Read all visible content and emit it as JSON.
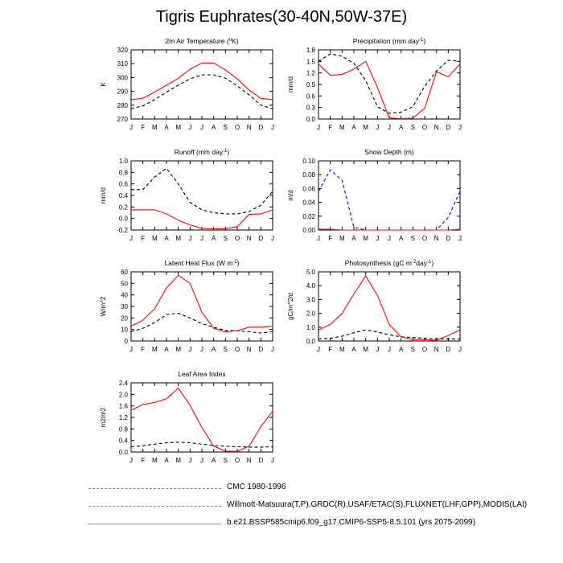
{
  "title": "Tigris Euphrates(30-40N,50W-37E)",
  "months": [
    "J",
    "F",
    "M",
    "A",
    "M",
    "J",
    "J",
    "A",
    "S",
    "O",
    "N",
    "D",
    "J"
  ],
  "colors": {
    "model": "#ff0000",
    "cmc": "#000000",
    "obs": "#0000ff"
  },
  "legend": [
    {
      "label": "CMC 1980-1996",
      "color": "#808080",
      "style": "dashed"
    },
    {
      "label": "Willmott-Matsuura(T,P),GRDC(R),USAF/ETAC(S),FLUXNET(LHF,GPP),MODIS(LAI)",
      "color": "#8080ff",
      "style": "dashed"
    },
    {
      "label": "b.e21.BSSP585cmip6.f09_g17.CMIP6-SSP5-8.5.101 (yrs 2075-2099)",
      "color": "#ff6060",
      "style": "solid"
    }
  ],
  "chart_data": [
    {
      "type": "line",
      "title": "2m Air Temperature (°K)",
      "ylabel": "K",
      "ylim": [
        270,
        320
      ],
      "yticks": [
        "270",
        "280",
        "290",
        "300",
        "310",
        "320"
      ],
      "series": [
        {
          "name": "CMC 1980-1996",
          "style": "dashed",
          "color": "#000000",
          "values": [
            277.5,
            279.5,
            284,
            289.5,
            294.5,
            299,
            302,
            302,
            299.5,
            294,
            287.5,
            280,
            277.5
          ]
        },
        {
          "name": "b.e21.BSSP585cmip6.f09_g17.CMIP6-SSP5-8.5.101 (yrs 2075-2099)",
          "style": "solid",
          "color": "#ff0000",
          "values": [
            284,
            285,
            289.5,
            294.5,
            299.5,
            306,
            310.5,
            310.5,
            305.5,
            299,
            291,
            285,
            284
          ]
        }
      ]
    },
    {
      "type": "line",
      "title": "Precipitation (mm day-1)",
      "ylabel": "mm/d",
      "ylim": [
        0.0,
        1.8
      ],
      "yticks": [
        "0.0",
        "0.3",
        "0.6",
        "0.9",
        "1.2",
        "1.5",
        "1.8"
      ],
      "series": [
        {
          "name": "CMC 1980-1996",
          "style": "dashed",
          "color": "#000000",
          "values": [
            1.5,
            1.7,
            1.63,
            1.45,
            1.0,
            0.32,
            0.15,
            0.18,
            0.32,
            0.85,
            1.25,
            1.53,
            1.5
          ]
        },
        {
          "name": "b.e21.BSSP585cmip6.f09_g17.CMIP6-SSP5-8.5.101 (yrs 2075-2099)",
          "style": "solid",
          "color": "#ff0000",
          "values": [
            1.43,
            1.14,
            1.16,
            1.3,
            1.5,
            0.82,
            0.03,
            0.01,
            0.02,
            0.28,
            1.23,
            1.1,
            1.43
          ]
        }
      ]
    },
    {
      "type": "line",
      "title": "Runoff (mm day-1)",
      "ylabel": "mm/d",
      "ylim": [
        -0.2,
        1.0
      ],
      "yticks": [
        "-0.2",
        "0.0",
        "0.2",
        "0.4",
        "0.6",
        "0.8",
        "1.0"
      ],
      "series": [
        {
          "name": "CMC 1980-1996",
          "style": "dashed",
          "color": "#000000",
          "values": [
            0.5,
            0.5,
            0.72,
            0.87,
            0.6,
            0.28,
            0.15,
            0.1,
            0.08,
            0.08,
            0.12,
            0.23,
            0.47
          ]
        },
        {
          "name": "b.e21.BSSP585cmip6.f09_g17.CMIP6-SSP5-8.5.101 (yrs 2075-2099)",
          "style": "solid",
          "color": "#ff0000",
          "values": [
            0.15,
            0.15,
            0.15,
            0.08,
            -0.03,
            -0.11,
            -0.17,
            -0.18,
            -0.18,
            -0.14,
            0.07,
            0.08,
            0.15
          ]
        }
      ]
    },
    {
      "type": "line",
      "title": "Snow Depth (m)",
      "ylabel": "m/d",
      "ylim": [
        0.0,
        0.1
      ],
      "yticks": [
        "0.00",
        "0.02",
        "0.04",
        "0.06",
        "0.08",
        "0.10"
      ],
      "series": [
        {
          "name": "Willmott-Matsuura(T,P),GRDC(R),USAF/ETAC(S),FLUXNET(LHF,GPP),MODIS(LAI)",
          "style": "dashed",
          "color": "#0000ff",
          "values": [
            0.056,
            0.087,
            0.072,
            0.004,
            0.0,
            0.0,
            0.0,
            0.0,
            0.0,
            0.0,
            0.0,
            0.018,
            0.056
          ]
        },
        {
          "name": "b.e21.BSSP585cmip6.f09_g17.CMIP6-SSP5-8.5.101 (yrs 2075-2099)",
          "style": "solid",
          "color": "#ff0000",
          "values": [
            0.001,
            0.001,
            0.0,
            0.0,
            0.0,
            0.0,
            0.0,
            0.0,
            0.0,
            0.0,
            0.0,
            0.0,
            0.001
          ]
        }
      ]
    },
    {
      "type": "line",
      "title": "Latent Heat Flux (W m-2)",
      "ylabel": "W/m^2",
      "ylim": [
        0,
        60
      ],
      "yticks": [
        "0",
        "10",
        "20",
        "30",
        "40",
        "50",
        "60"
      ],
      "series": [
        {
          "name": "CMC 1980-1996",
          "style": "dashed",
          "color": "#000000",
          "values": [
            8,
            11,
            16,
            23,
            24,
            20,
            15,
            12,
            9,
            9,
            8,
            7,
            8
          ]
        },
        {
          "name": "b.e21.BSSP585cmip6.f09_g17.CMIP6-SSP5-8.5.101 (yrs 2075-2099)",
          "style": "solid",
          "color": "#ff0000",
          "values": [
            13,
            18,
            28,
            46,
            57,
            50,
            25,
            11,
            8,
            9,
            12,
            12,
            13
          ]
        }
      ]
    },
    {
      "type": "line",
      "title": "Photosynthesis (gC m-2day-1)",
      "ylabel": "gC/m^2/d",
      "ylim": [
        0.0,
        5.0
      ],
      "yticks": [
        "0.0",
        "1.0",
        "2.0",
        "3.0",
        "4.0",
        "5.0"
      ],
      "series": [
        {
          "name": "CMC 1980-1996",
          "style": "dashed",
          "color": "#000000",
          "values": [
            0.15,
            0.2,
            0.35,
            0.6,
            0.8,
            0.65,
            0.45,
            0.3,
            0.25,
            0.2,
            0.15,
            0.15,
            0.15
          ]
        },
        {
          "name": "b.e21.BSSP585cmip6.f09_g17.CMIP6-SSP5-8.5.101 (yrs 2075-2099)",
          "style": "solid",
          "color": "#ff0000",
          "values": [
            0.8,
            1.2,
            2.0,
            3.4,
            4.7,
            3.3,
            1.2,
            0.3,
            0.1,
            0.1,
            0.05,
            0.4,
            0.8
          ]
        }
      ]
    },
    {
      "type": "line",
      "title": "Leaf Area Index",
      "ylabel": "m2/m2",
      "ylim": [
        0.0,
        2.4
      ],
      "yticks": [
        "0.0",
        "0.4",
        "0.8",
        "1.2",
        "1.6",
        "2.0",
        "2.4"
      ],
      "series": [
        {
          "name": "CMC 1980-1996",
          "style": "dashed",
          "color": "#000000",
          "values": [
            0.18,
            0.22,
            0.27,
            0.32,
            0.34,
            0.32,
            0.27,
            0.23,
            0.2,
            0.18,
            0.17,
            0.17,
            0.18
          ]
        },
        {
          "name": "b.e21.BSSP585cmip6.f09_g17.CMIP6-SSP5-8.5.101 (yrs 2075-2099)",
          "style": "solid",
          "color": "#ff0000",
          "values": [
            1.45,
            1.65,
            1.72,
            1.85,
            2.22,
            1.62,
            0.85,
            0.2,
            0.03,
            0.02,
            0.2,
            0.88,
            1.42
          ]
        }
      ]
    }
  ]
}
